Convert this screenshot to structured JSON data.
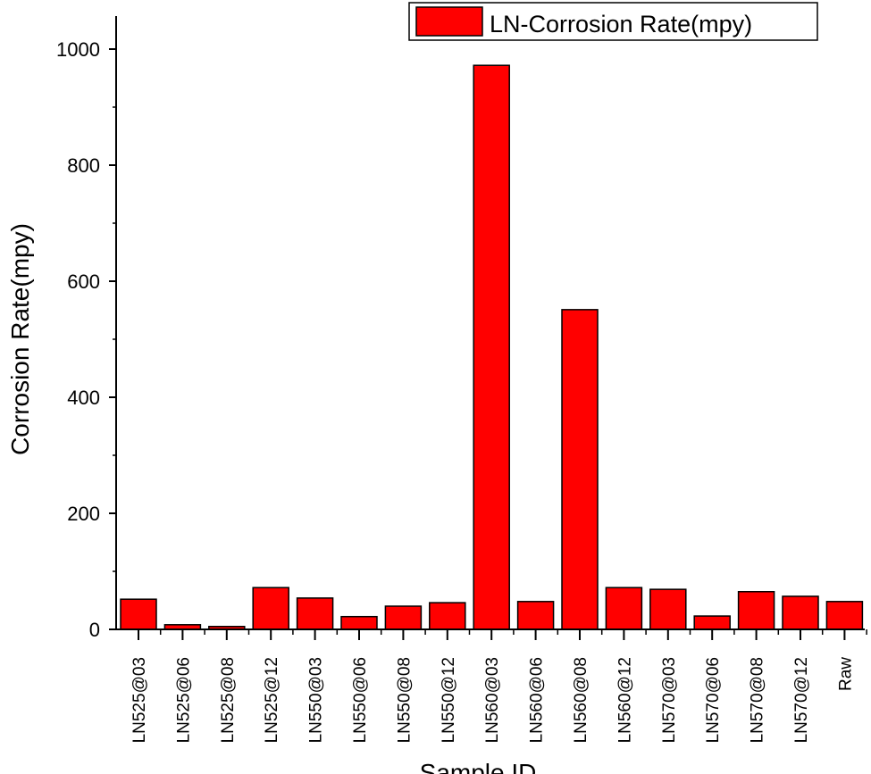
{
  "chart_data": {
    "type": "bar",
    "title": "",
    "xlabel": "Sample ID",
    "ylabel": "Corrosion Rate(mpy)",
    "ylim": [
      0,
      1050
    ],
    "yticks": [
      0,
      200,
      400,
      600,
      800,
      1000
    ],
    "grid": false,
    "legend": {
      "position": "top-right",
      "entries": [
        "LN-Corrosion Rate(mpy)"
      ]
    },
    "categories": [
      "LN525@03",
      "LN525@06",
      "LN525@08",
      "LN525@12",
      "LN550@03",
      "LN550@06",
      "LN550@08",
      "LN550@12",
      "LN560@03",
      "LN560@06",
      "LN560@08",
      "LN560@12",
      "LN570@03",
      "LN570@06",
      "LN570@08",
      "LN570@12",
      "Raw"
    ],
    "series": [
      {
        "name": "LN-Corrosion Rate(mpy)",
        "color": "#ff0000",
        "values": [
          52,
          8,
          5,
          72,
          54,
          22,
          40,
          46,
          972,
          48,
          551,
          72,
          69,
          23,
          65,
          57,
          48
        ]
      }
    ]
  }
}
